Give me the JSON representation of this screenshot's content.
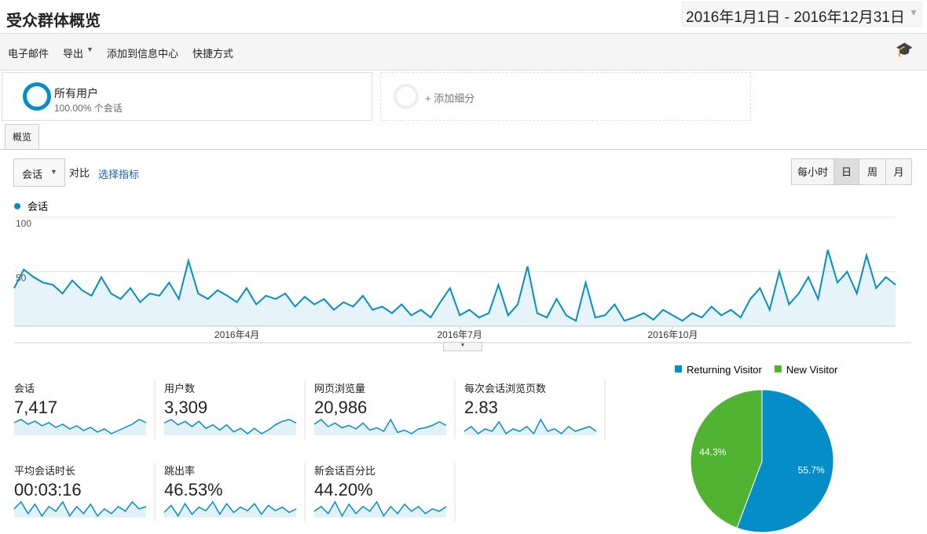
{
  "header": {
    "title": "受众群体概览",
    "date_range": "2016年1月1日 - 2016年12月31日"
  },
  "toolbar": [
    "电子邮件",
    "导出",
    "添加到信息中心",
    "快捷方式"
  ],
  "segments": {
    "name": "所有用户",
    "detail": "100.00% 个会话",
    "add": "+ 添加细分"
  },
  "tab": "概览",
  "controls": {
    "metric": "会话",
    "compare": "对比",
    "select": "选择指标",
    "granularity": [
      "每小时",
      "日",
      "周",
      "月"
    ]
  },
  "metrics": [
    {
      "name": "会话",
      "value": "7,417",
      "spark": [
        30,
        34,
        28,
        32,
        26,
        30,
        24,
        28,
        22,
        26,
        20,
        24,
        18,
        22,
        16,
        20,
        24,
        28,
        34,
        30
      ]
    },
    {
      "name": "用户数",
      "value": "3,309",
      "spark": [
        28,
        32,
        26,
        30,
        24,
        30,
        22,
        26,
        20,
        26,
        18,
        22,
        16,
        22,
        16,
        20,
        26,
        30,
        32,
        28
      ]
    },
    {
      "name": "网页浏览量",
      "value": "20,986",
      "spark": [
        32,
        40,
        28,
        34,
        26,
        30,
        24,
        34,
        22,
        26,
        20,
        40,
        18,
        22,
        16,
        24,
        26,
        30,
        36,
        30
      ]
    },
    {
      "name": "每次会话浏览页数",
      "value": "2.83",
      "spark": [
        26,
        30,
        24,
        28,
        26,
        34,
        24,
        28,
        26,
        30,
        24,
        36,
        26,
        28,
        24,
        30,
        26,
        28,
        30,
        26
      ]
    },
    {
      "name": "平均会话时长",
      "value": "00:03:16",
      "spark": [
        28,
        34,
        24,
        32,
        22,
        30,
        26,
        34,
        22,
        30,
        24,
        32,
        22,
        28,
        24,
        30,
        26,
        34,
        28,
        30
      ]
    },
    {
      "name": "跳出率",
      "value": "46.53%",
      "spark": [
        24,
        32,
        20,
        34,
        22,
        30,
        26,
        36,
        22,
        34,
        24,
        30,
        26,
        34,
        22,
        32,
        26,
        30,
        24,
        28
      ]
    },
    {
      "name": "新会话百分比",
      "value": "44.20%",
      "spark": [
        26,
        30,
        24,
        34,
        22,
        32,
        24,
        30,
        26,
        34,
        22,
        30,
        24,
        32,
        26,
        30,
        24,
        28,
        26,
        30
      ]
    }
  ],
  "chart_data": [
    {
      "type": "line",
      "categories": [
        null,
        null,
        null,
        null,
        null,
        null,
        null,
        null,
        null,
        null,
        null,
        null,
        null,
        null,
        null,
        null,
        null,
        null,
        null,
        null,
        null,
        null,
        null,
        "2016年4月",
        null,
        null,
        null,
        null,
        null,
        null,
        null,
        null,
        null,
        null,
        null,
        null,
        null,
        null,
        null,
        null,
        null,
        null,
        null,
        null,
        null,
        null,
        "2016年7月",
        null,
        null,
        null,
        null,
        null,
        null,
        null,
        null,
        null,
        null,
        null,
        null,
        null,
        null,
        null,
        null,
        null,
        null,
        null,
        null,
        null,
        "2016年10月",
        null,
        null,
        null,
        null,
        null,
        null,
        null,
        null,
        null,
        null,
        null,
        null,
        null,
        null,
        null,
        null,
        null,
        null,
        null,
        null,
        null,
        null,
        null
      ],
      "series": [
        {
          "name": "会话",
          "color": "#058dc7",
          "values": [
            35,
            52,
            45,
            40,
            38,
            30,
            42,
            33,
            28,
            45,
            30,
            25,
            35,
            22,
            30,
            28,
            40,
            25,
            60,
            30,
            25,
            33,
            28,
            22,
            35,
            20,
            28,
            25,
            30,
            18,
            27,
            20,
            25,
            15,
            22,
            18,
            28,
            15,
            18,
            12,
            20,
            10,
            15,
            8,
            22,
            35,
            10,
            15,
            8,
            12,
            38,
            10,
            20,
            55,
            12,
            8,
            25,
            10,
            5,
            40,
            8,
            10,
            20,
            5,
            8,
            12,
            6,
            15,
            10,
            5,
            12,
            8,
            18,
            10,
            15,
            8,
            25,
            35,
            15,
            50,
            20,
            30,
            45,
            25,
            70,
            40,
            50,
            30,
            65,
            35,
            45,
            38
          ]
        }
      ],
      "ylim": [
        0,
        100
      ],
      "yticks": [
        50,
        100
      ],
      "grid": true
    },
    {
      "type": "pie",
      "categories": [
        "Returning Visitor",
        "New Visitor"
      ],
      "values": [
        55.7,
        44.3
      ],
      "value_labels": [
        "55.7%",
        "44.3%"
      ],
      "colors": [
        "#058dc7",
        "#50b432"
      ],
      "legend": "top"
    }
  ]
}
